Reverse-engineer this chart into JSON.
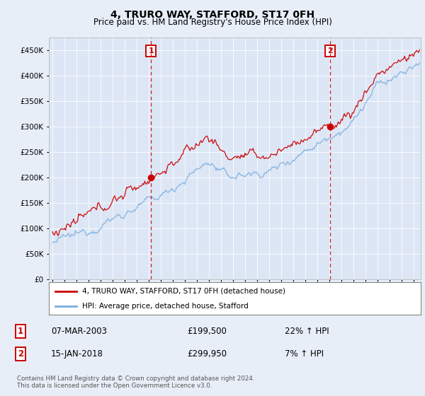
{
  "title": "4, TRURO WAY, STAFFORD, ST17 0FH",
  "subtitle": "Price paid vs. HM Land Registry's House Price Index (HPI)",
  "background_color": "#e8eef8",
  "plot_bg_color": "#dce6f5",
  "sale1_date": "07-MAR-2003",
  "sale1_price": 199500,
  "sale1_hpi_pct": "22% ↑ HPI",
  "sale2_date": "15-JAN-2018",
  "sale2_price": 299950,
  "sale2_hpi_pct": "7% ↑ HPI",
  "legend_label_red": "4, TRURO WAY, STAFFORD, ST17 0FH (detached house)",
  "legend_label_blue": "HPI: Average price, detached house, Stafford",
  "footer": "Contains HM Land Registry data © Crown copyright and database right 2024.\nThis data is licensed under the Open Government Licence v3.0.",
  "red_color": "#cc0000",
  "blue_color": "#7aaddd",
  "vline_color": "#cc0000",
  "annotation_box_color": "#cc0000",
  "ylim": [
    0,
    475000
  ],
  "yticks": [
    0,
    50000,
    100000,
    150000,
    200000,
    250000,
    300000,
    350000,
    400000,
    450000
  ],
  "x_start_year": 1995,
  "x_end_year": 2025,
  "sale1_x": 2003.18,
  "sale2_x": 2018.04
}
